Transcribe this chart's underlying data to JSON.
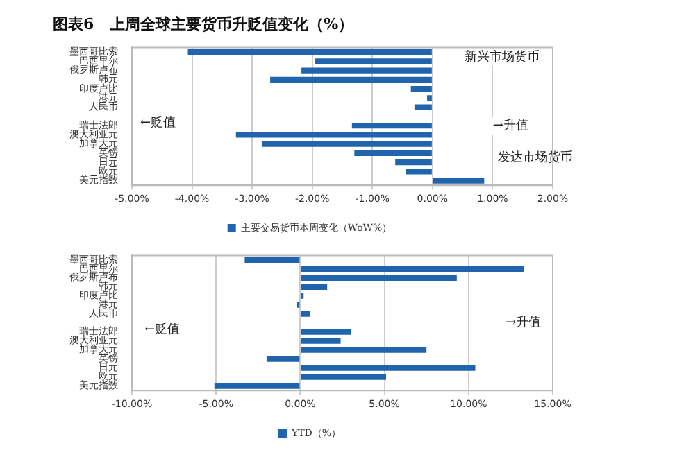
{
  "chart_data": [
    {
      "type": "bar",
      "orientation": "horizontal",
      "title": "图表6   上周全球主要货币升贬值变化（%）",
      "categories": [
        "墨西哥比索",
        "巴西里尔",
        "俄罗斯卢布",
        "韩元",
        "印度卢比",
        "港元",
        "人民币",
        null,
        "瑞士法郎",
        "澳大利亚元",
        "加拿大元",
        "英镑",
        "日元",
        "欧元",
        "美元指数"
      ],
      "series": [
        {
          "name": "主要交易货币本周变化（WoW%）",
          "color": "#1f64ad",
          "values": [
            -4.07,
            -1.95,
            -2.18,
            -2.7,
            -0.36,
            -0.09,
            -0.3,
            null,
            -1.34,
            -3.27,
            -2.84,
            -1.3,
            -0.62,
            -0.44,
            0.86
          ]
        }
      ],
      "xlim": [
        -5,
        2
      ],
      "xticks": [
        {
          "value": -5,
          "label": "-5.00%"
        },
        {
          "value": -4,
          "label": "-4.00%"
        },
        {
          "value": -3,
          "label": "-3.00%"
        },
        {
          "value": -2,
          "label": "-2.00%"
        },
        {
          "value": -1,
          "label": "-1.00%"
        },
        {
          "value": 0,
          "label": "0.00%"
        },
        {
          "value": 1,
          "label": "1.00%"
        },
        {
          "value": 2,
          "label": "2.00%"
        }
      ],
      "grid": "x",
      "legend": "bottom",
      "annotations": [
        "新兴市场货币",
        "发达市场货币",
        "←贬值",
        "→升值"
      ]
    },
    {
      "type": "bar",
      "orientation": "horizontal",
      "categories": [
        "墨西哥比索",
        "巴西里尔",
        "俄罗斯卢布",
        "韩元",
        "印度卢比",
        "港元",
        "人民币",
        null,
        "瑞士法郎",
        "澳大利亚元",
        "加拿大元",
        "英镑",
        "日元",
        "欧元",
        "美元指数"
      ],
      "series": [
        {
          "name": "YTD（%）",
          "color": "#1f64ad",
          "values": [
            -3.3,
            13.3,
            9.3,
            1.6,
            0.2,
            -0.2,
            0.6,
            null,
            3.0,
            2.4,
            7.5,
            -2.0,
            10.4,
            5.1,
            -5.1
          ]
        }
      ],
      "xlim": [
        -10,
        15
      ],
      "xticks": [
        {
          "value": -10,
          "label": "-10.00%"
        },
        {
          "value": -5,
          "label": "-5.00%"
        },
        {
          "value": 0,
          "label": "0.00%"
        },
        {
          "value": 5,
          "label": "5.00%"
        },
        {
          "value": 10,
          "label": "10.00%"
        },
        {
          "value": 15,
          "label": "15.00%"
        }
      ],
      "grid": "x",
      "legend": "bottom",
      "annotations": [
        "←贬值",
        "→升值"
      ]
    }
  ]
}
